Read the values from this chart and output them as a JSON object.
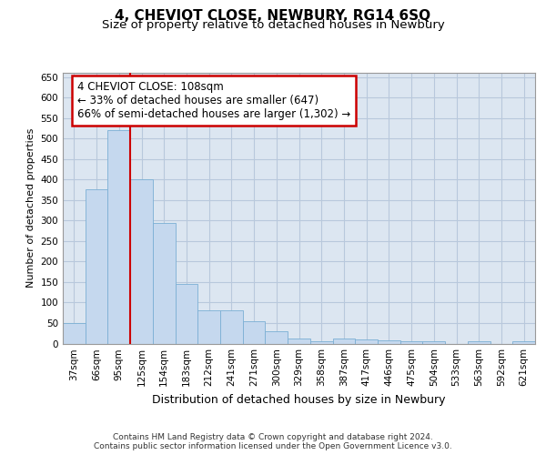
{
  "title": "4, CHEVIOT CLOSE, NEWBURY, RG14 6SQ",
  "subtitle": "Size of property relative to detached houses in Newbury",
  "xlabel": "Distribution of detached houses by size in Newbury",
  "ylabel": "Number of detached properties",
  "categories": [
    "37sqm",
    "66sqm",
    "95sqm",
    "125sqm",
    "154sqm",
    "183sqm",
    "212sqm",
    "241sqm",
    "271sqm",
    "300sqm",
    "329sqm",
    "358sqm",
    "387sqm",
    "417sqm",
    "446sqm",
    "475sqm",
    "504sqm",
    "533sqm",
    "563sqm",
    "592sqm",
    "621sqm"
  ],
  "values": [
    50,
    375,
    520,
    400,
    295,
    145,
    82,
    82,
    55,
    30,
    12,
    5,
    12,
    10,
    8,
    5,
    5,
    0,
    5,
    0,
    5
  ],
  "bar_color": "#c5d8ee",
  "bar_edge_color": "#7bafd4",
  "grid_color": "#b8c8dc",
  "background_color": "#dce6f1",
  "vline_color": "#cc0000",
  "annotation_text": "4 CHEVIOT CLOSE: 108sqm\n← 33% of detached houses are smaller (647)\n66% of semi-detached houses are larger (1,302) →",
  "annotation_box_facecolor": "#ffffff",
  "annotation_box_edgecolor": "#cc0000",
  "ylim": [
    0,
    660
  ],
  "yticks": [
    0,
    50,
    100,
    150,
    200,
    250,
    300,
    350,
    400,
    450,
    500,
    550,
    600,
    650
  ],
  "footnote_line1": "Contains HM Land Registry data © Crown copyright and database right 2024.",
  "footnote_line2": "Contains public sector information licensed under the Open Government Licence v3.0.",
  "title_fontsize": 11,
  "subtitle_fontsize": 9.5,
  "xlabel_fontsize": 9,
  "ylabel_fontsize": 8,
  "tick_fontsize": 7.5,
  "annotation_fontsize": 8.5,
  "footnote_fontsize": 6.5,
  "vline_x": 2.5
}
